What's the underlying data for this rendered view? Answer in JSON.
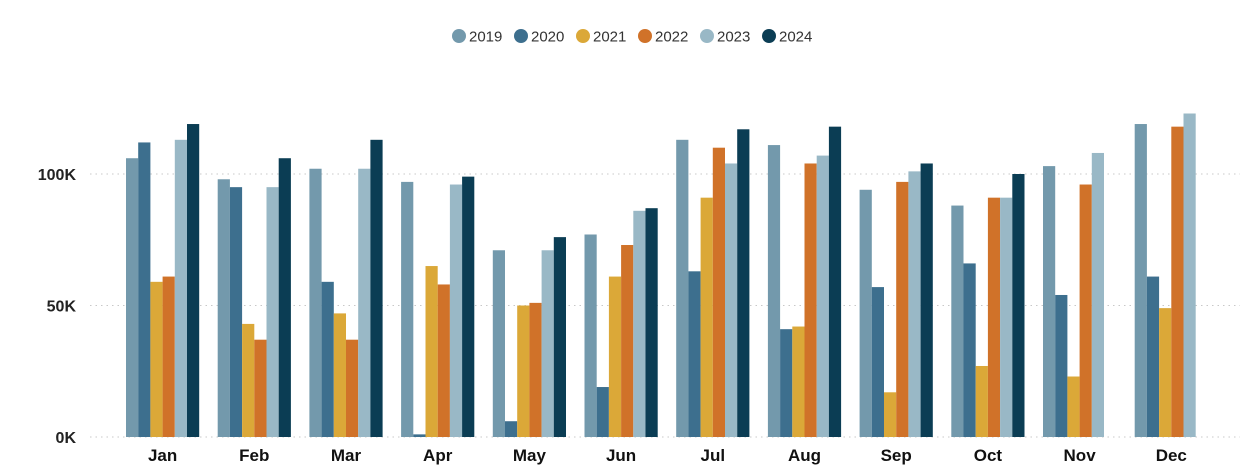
{
  "chart_data": {
    "type": "bar",
    "title": "",
    "xlabel": "",
    "ylabel": "",
    "legend_position": "top-center",
    "grid": "horizontal-dotted",
    "ylim": [
      0,
      130000
    ],
    "yticks": [
      {
        "value": 0,
        "label": "0K"
      },
      {
        "value": 50000,
        "label": "50K"
      },
      {
        "value": 100000,
        "label": "100K"
      }
    ],
    "categories": [
      "Jan",
      "Feb",
      "Mar",
      "Apr",
      "May",
      "Jun",
      "Jul",
      "Aug",
      "Sep",
      "Oct",
      "Nov",
      "Dec"
    ],
    "series": [
      {
        "name": "2019",
        "color": "#7399ac",
        "values": [
          106000,
          98000,
          102000,
          97000,
          71000,
          77000,
          113000,
          111000,
          94000,
          88000,
          103000,
          119000
        ]
      },
      {
        "name": "2020",
        "color": "#3d6f8e",
        "values": [
          112000,
          95000,
          59000,
          1000,
          6000,
          19000,
          63000,
          41000,
          57000,
          66000,
          54000,
          61000
        ]
      },
      {
        "name": "2021",
        "color": "#dba838",
        "values": [
          59000,
          43000,
          47000,
          65000,
          50000,
          61000,
          91000,
          42000,
          17000,
          27000,
          23000,
          49000
        ]
      },
      {
        "name": "2022",
        "color": "#d07229",
        "values": [
          61000,
          37000,
          37000,
          58000,
          51000,
          73000,
          110000,
          104000,
          97000,
          91000,
          96000,
          118000
        ]
      },
      {
        "name": "2023",
        "color": "#99b8c6",
        "values": [
          113000,
          95000,
          102000,
          96000,
          71000,
          86000,
          104000,
          107000,
          101000,
          91000,
          108000,
          123000
        ]
      },
      {
        "name": "2024",
        "color": "#0b3d54",
        "values": [
          119000,
          106000,
          113000,
          99000,
          76000,
          87000,
          117000,
          118000,
          104000,
          100000,
          null,
          null
        ]
      }
    ]
  }
}
